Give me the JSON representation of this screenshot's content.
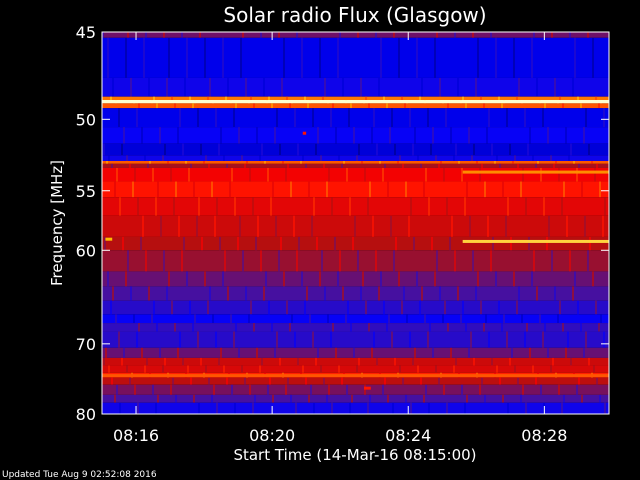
{
  "chart_data": {
    "type": "heatmap",
    "title": "Solar radio Flux (Glasgow)",
    "xlabel": "Start Time (14-Mar-16 08:15:00)",
    "ylabel": "Frequency [MHz]",
    "x_tick_labels": [
      "08:16",
      "08:20",
      "08:24",
      "08:28"
    ],
    "x_tick_minutes": [
      1,
      5,
      9,
      13
    ],
    "xlim_minutes": [
      0.0,
      14.9
    ],
    "y_tick_labels": [
      "45",
      "50",
      "55",
      "60",
      "70",
      "80"
    ],
    "y_ticks_mhz": [
      45,
      50,
      55,
      60,
      70,
      80
    ],
    "ylim_mhz": [
      45,
      80
    ],
    "y_scale": "reciprocal",
    "colormap": [
      "#000080",
      "#0000ff",
      "#3a10b0",
      "#b01010",
      "#ff0000",
      "#ff6000",
      "#ffc000",
      "#ffffd0"
    ],
    "frequency_bands_mhz": [
      [
        45.0,
        45.3,
        0.35
      ],
      [
        45.3,
        47.5,
        0.12
      ],
      [
        47.5,
        48.6,
        0.18
      ],
      [
        48.6,
        48.8,
        0.75
      ],
      [
        48.8,
        49.0,
        1.0
      ],
      [
        49.0,
        49.3,
        0.7
      ],
      [
        49.3,
        50.5,
        0.12
      ],
      [
        50.5,
        51.6,
        0.16
      ],
      [
        51.6,
        52.4,
        0.1
      ],
      [
        52.4,
        52.8,
        0.18
      ],
      [
        52.8,
        53.0,
        0.7
      ],
      [
        53.0,
        53.3,
        0.42
      ],
      [
        53.3,
        54.3,
        0.55
      ],
      [
        54.3,
        55.5,
        0.6
      ],
      [
        55.5,
        57.0,
        0.52
      ],
      [
        57.0,
        58.8,
        0.48
      ],
      [
        58.8,
        60.0,
        0.44
      ],
      [
        60.0,
        62.0,
        0.4
      ],
      [
        62.0,
        63.5,
        0.34
      ],
      [
        63.5,
        65.0,
        0.3
      ],
      [
        65.0,
        66.5,
        0.24
      ],
      [
        66.5,
        67.5,
        0.16
      ],
      [
        67.5,
        68.5,
        0.26
      ],
      [
        68.5,
        70.5,
        0.24
      ],
      [
        70.5,
        71.8,
        0.34
      ],
      [
        71.8,
        72.8,
        0.48
      ],
      [
        72.8,
        73.8,
        0.5
      ],
      [
        73.8,
        74.5,
        0.62
      ],
      [
        74.5,
        75.5,
        0.45
      ],
      [
        75.5,
        77.0,
        0.36
      ],
      [
        77.0,
        78.2,
        0.3
      ],
      [
        78.2,
        80.0,
        0.18
      ]
    ],
    "features": [
      {
        "freq_mhz": 48.9,
        "from_min": 0.0,
        "to_min": 14.9,
        "level": 1.0
      },
      {
        "freq_mhz": 59.2,
        "from_min": 10.6,
        "to_min": 14.9,
        "level": 0.9
      },
      {
        "freq_mhz": 59.0,
        "from_min": 0.1,
        "to_min": 0.3,
        "level": 0.85
      },
      {
        "freq_mhz": 53.6,
        "from_min": 10.6,
        "to_min": 14.9,
        "level": 0.78
      },
      {
        "freq_mhz": 74.2,
        "from_min": 0.0,
        "to_min": 14.9,
        "level": 0.7
      },
      {
        "freq_mhz": 76.0,
        "from_min": 7.7,
        "to_min": 7.9,
        "level": 0.6
      },
      {
        "freq_mhz": 50.9,
        "from_min": 5.9,
        "to_min": 6.0,
        "level": 0.6
      }
    ]
  },
  "footer": {
    "updated": "Updated Tue Aug  9 02:52:08 2016"
  }
}
